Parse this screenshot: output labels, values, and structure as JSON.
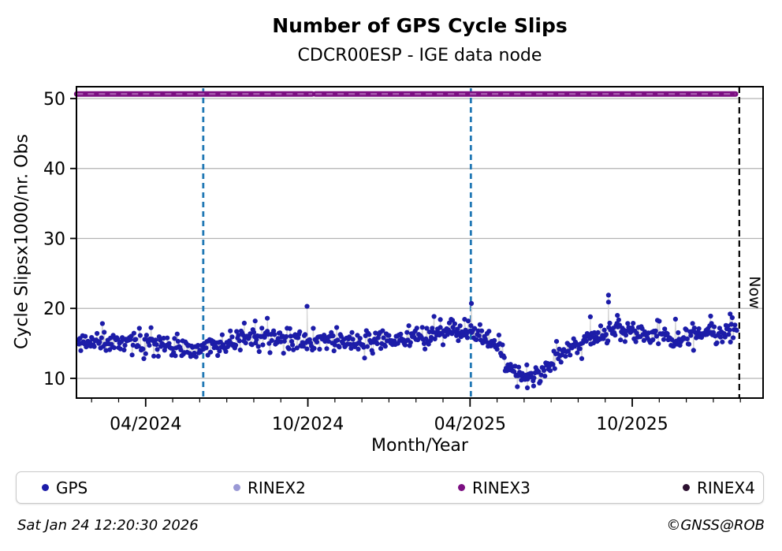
{
  "title": "Number of GPS Cycle Slips",
  "subtitle": "CDCR00ESP - IGE data node",
  "footer": {
    "timestamp": "Sat Jan 24 12:20:30 2026",
    "credit": "©GNSS@ROB"
  },
  "legend": {
    "items": [
      {
        "label": "GPS",
        "color": "#1c1ca8"
      },
      {
        "label": "RINEX2",
        "color": "#9a99d5"
      },
      {
        "label": "RINEX3",
        "color": "#7c0f82"
      },
      {
        "label": "RINEX4",
        "color": "#2c1030"
      }
    ]
  },
  "chart_data": {
    "type": "scatter",
    "title": "Number of GPS Cycle Slips",
    "subtitle": "CDCR00ESP - IGE data node",
    "xlabel": "Month/Year",
    "ylabel": "Cycle Slipsx1000/nr. Obs",
    "x_unit_note": "x values are months since 2024-01-01 (3 = 04/2024)",
    "xlim": [
      0.44,
      25.84
    ],
    "ylim": [
      7.18,
      51.69
    ],
    "y_ticks": [
      10,
      20,
      30,
      40,
      50
    ],
    "x_ticks_major": [
      {
        "t": 3,
        "label": "04/2024"
      },
      {
        "t": 9,
        "label": "10/2024"
      },
      {
        "t": 15,
        "label": "04/2025"
      },
      {
        "t": 21,
        "label": "10/2025"
      }
    ],
    "x_minor_tick_ts": [
      1,
      2,
      3,
      4,
      5,
      6,
      7,
      8,
      9,
      10,
      11,
      12,
      13,
      14,
      15,
      16,
      17,
      18,
      19,
      20,
      21,
      22,
      23,
      24,
      25
    ],
    "grid": {
      "horizontal": true,
      "color": "#b3b3b3"
    },
    "series": {
      "gps": {
        "name": "GPS",
        "color": "#1c1ca8",
        "connect_color": "#d4d4d4",
        "marker_radius": 3.1,
        "t_range": [
          0.5,
          24.88
        ],
        "points_per_month": 30,
        "noise_sd": 0.72,
        "spike_prob": 0.02,
        "drop_prob": 0.025,
        "min_value": 8.6,
        "seed": 11,
        "mean_profile": [
          [
            0.5,
            15.2
          ],
          [
            1.5,
            15.15
          ],
          [
            2.6,
            15.35
          ],
          [
            3.6,
            15.0
          ],
          [
            4.4,
            14.5
          ],
          [
            4.95,
            13.85
          ],
          [
            5.5,
            14.9
          ],
          [
            6.2,
            15.25
          ],
          [
            7.0,
            15.9
          ],
          [
            7.7,
            16.0
          ],
          [
            8.3,
            15.3
          ],
          [
            9.2,
            15.35
          ],
          [
            10.2,
            15.25
          ],
          [
            11.2,
            15.35
          ],
          [
            12.2,
            15.6
          ],
          [
            13.2,
            16.0
          ],
          [
            14.2,
            16.5
          ],
          [
            15.1,
            16.9
          ],
          [
            15.7,
            15.6
          ],
          [
            16.1,
            13.6
          ],
          [
            16.6,
            11.0
          ],
          [
            17.0,
            10.2
          ],
          [
            17.5,
            10.3
          ],
          [
            17.9,
            12.0
          ],
          [
            18.4,
            13.8
          ],
          [
            19.0,
            15.2
          ],
          [
            19.7,
            16.2
          ],
          [
            20.4,
            16.8
          ],
          [
            21.1,
            16.5
          ],
          [
            21.9,
            16.1
          ],
          [
            22.6,
            15.6
          ],
          [
            23.3,
            16.2
          ],
          [
            24.1,
            16.4
          ],
          [
            24.55,
            16.9
          ],
          [
            24.88,
            17.4
          ]
        ],
        "outliers": [
          [
            6.65,
            17.9
          ],
          [
            7.05,
            18.2
          ],
          [
            7.5,
            18.6
          ],
          [
            8.97,
            20.3
          ],
          [
            13.9,
            18.4
          ],
          [
            14.35,
            18.3
          ],
          [
            15.05,
            20.7
          ],
          [
            16.75,
            8.8
          ],
          [
            17.12,
            8.65
          ],
          [
            17.35,
            8.9
          ],
          [
            19.45,
            18.8
          ],
          [
            20.12,
            21.9
          ],
          [
            20.12,
            20.9
          ],
          [
            20.45,
            19.0
          ],
          [
            23.9,
            18.9
          ],
          [
            24.62,
            19.2
          ]
        ]
      },
      "rinex3": {
        "name": "RINEX3",
        "type": "line",
        "value": 50.65,
        "segments": [
          [
            0.45,
            9.16
          ],
          [
            9.28,
            24.82
          ]
        ],
        "color": "#7c0f82",
        "inner_dash_color": "#a75bad",
        "width": 7
      }
    },
    "event_lines": [
      {
        "t": 5.13,
        "color": "#1f77b4",
        "style": "dashed"
      },
      {
        "t": 15.03,
        "color": "#1f77b4",
        "style": "dashed"
      }
    ],
    "now_line": {
      "t": 24.96,
      "label": "Now",
      "color": "#000000",
      "style": "dashed"
    }
  }
}
